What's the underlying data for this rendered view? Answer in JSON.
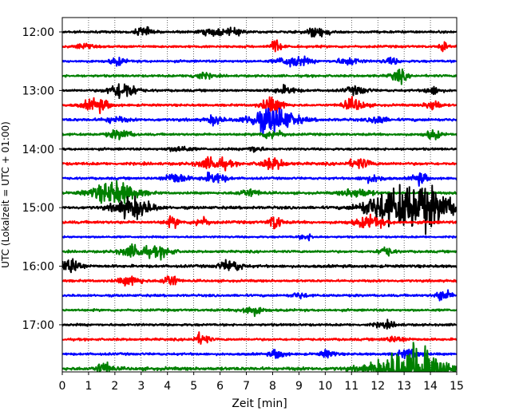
{
  "chart_data": {
    "type": "line",
    "subtype": "helicorder",
    "xlabel": "Zeit  [min]",
    "ylabel": "UTC (Lokalzeit = UTC + 01:00)",
    "xlim": [
      0,
      15
    ],
    "x_ticks": [
      "0",
      "1",
      "2",
      "3",
      "4",
      "5",
      "6",
      "7",
      "8",
      "9",
      "10",
      "11",
      "12",
      "13",
      "14",
      "15"
    ],
    "y_tick_labels": [
      "12:00",
      "13:00",
      "14:00",
      "15:00",
      "16:00",
      "17:00"
    ],
    "grid": "vertical dotted at each minute",
    "trace_minutes": 15,
    "line_colors": [
      "#000000",
      "#ff0000",
      "#0000ff",
      "#008000"
    ],
    "traces": [
      {
        "start": "12:00",
        "color": "black",
        "noise": 0.25,
        "events": [
          {
            "t": 3.1,
            "amp": 0.55,
            "dur": 0.2
          },
          {
            "t": 5.7,
            "amp": 0.35,
            "dur": 0.3
          },
          {
            "t": 9.7,
            "amp": 0.55,
            "dur": 0.3
          },
          {
            "t": 6.5,
            "amp": 0.3,
            "dur": 0.3
          }
        ]
      },
      {
        "start": "12:15",
        "color": "red",
        "noise": 0.25,
        "events": [
          {
            "t": 8.1,
            "amp": 0.7,
            "dur": 0.15
          },
          {
            "t": 14.5,
            "amp": 0.5,
            "dur": 0.1
          },
          {
            "t": 0.8,
            "amp": 0.3,
            "dur": 0.2
          }
        ]
      },
      {
        "start": "12:30",
        "color": "blue",
        "noise": 0.25,
        "events": [
          {
            "t": 8.8,
            "amp": 0.6,
            "dur": 0.4
          },
          {
            "t": 2.1,
            "amp": 0.4,
            "dur": 0.2
          },
          {
            "t": 10.9,
            "amp": 0.4,
            "dur": 0.3
          },
          {
            "t": 12.5,
            "amp": 0.35,
            "dur": 0.2
          }
        ]
      },
      {
        "start": "12:45",
        "color": "green",
        "noise": 0.25,
        "events": [
          {
            "t": 12.8,
            "amp": 0.7,
            "dur": 0.2
          },
          {
            "t": 5.3,
            "amp": 0.3,
            "dur": 0.3
          }
        ]
      },
      {
        "start": "13:00",
        "color": "black",
        "noise": 0.25,
        "events": [
          {
            "t": 2.3,
            "amp": 1.0,
            "dur": 0.35
          },
          {
            "t": 8.5,
            "amp": 0.4,
            "dur": 0.3
          },
          {
            "t": 11.2,
            "amp": 0.4,
            "dur": 0.3
          },
          {
            "t": 14.1,
            "amp": 0.45,
            "dur": 0.2
          }
        ]
      },
      {
        "start": "13:15",
        "color": "red",
        "noise": 0.25,
        "events": [
          {
            "t": 1.3,
            "amp": 0.7,
            "dur": 0.35
          },
          {
            "t": 8.0,
            "amp": 0.8,
            "dur": 0.3
          },
          {
            "t": 11.1,
            "amp": 0.65,
            "dur": 0.3
          },
          {
            "t": 14.1,
            "amp": 0.6,
            "dur": 0.2
          }
        ]
      },
      {
        "start": "13:30",
        "color": "blue",
        "noise": 0.3,
        "events": [
          {
            "t": 8.0,
            "amp": 1.4,
            "dur": 0.6
          },
          {
            "t": 5.8,
            "amp": 0.5,
            "dur": 0.2
          },
          {
            "t": 12.0,
            "amp": 0.5,
            "dur": 0.2
          },
          {
            "t": 2.0,
            "amp": 0.3,
            "dur": 0.3
          }
        ]
      },
      {
        "start": "13:45",
        "color": "green",
        "noise": 0.25,
        "events": [
          {
            "t": 2.2,
            "amp": 0.5,
            "dur": 0.3
          },
          {
            "t": 8.0,
            "amp": 0.45,
            "dur": 0.3
          },
          {
            "t": 14.1,
            "amp": 0.5,
            "dur": 0.2
          }
        ]
      },
      {
        "start": "14:00",
        "color": "black",
        "noise": 0.25,
        "events": [
          {
            "t": 7.3,
            "amp": 0.35,
            "dur": 0.2
          },
          {
            "t": 4.5,
            "amp": 0.3,
            "dur": 0.3
          }
        ]
      },
      {
        "start": "14:15",
        "color": "red",
        "noise": 0.3,
        "events": [
          {
            "t": 5.8,
            "amp": 0.7,
            "dur": 0.4
          },
          {
            "t": 8.0,
            "amp": 0.6,
            "dur": 0.3
          },
          {
            "t": 11.3,
            "amp": 0.5,
            "dur": 0.3
          }
        ]
      },
      {
        "start": "14:30",
        "color": "blue",
        "noise": 0.25,
        "events": [
          {
            "t": 4.3,
            "amp": 0.6,
            "dur": 0.3
          },
          {
            "t": 5.8,
            "amp": 0.6,
            "dur": 0.3
          },
          {
            "t": 13.6,
            "amp": 0.6,
            "dur": 0.2
          },
          {
            "t": 11.8,
            "amp": 0.35,
            "dur": 0.3
          }
        ]
      },
      {
        "start": "14:45",
        "color": "green",
        "noise": 0.25,
        "events": [
          {
            "t": 2.0,
            "amp": 1.3,
            "dur": 0.6
          },
          {
            "t": 7.1,
            "amp": 0.4,
            "dur": 0.3
          },
          {
            "t": 11.2,
            "amp": 0.5,
            "dur": 0.4
          }
        ]
      },
      {
        "start": "15:00",
        "color": "black",
        "noise": 0.3,
        "events": [
          {
            "t": 2.7,
            "amp": 1.1,
            "dur": 0.5
          },
          {
            "t": 13.5,
            "amp": 2.6,
            "dur": 0.9
          },
          {
            "t": 12.0,
            "amp": 0.8,
            "dur": 0.5
          }
        ]
      },
      {
        "start": "15:15",
        "color": "red",
        "noise": 0.3,
        "events": [
          {
            "t": 8.1,
            "amp": 0.9,
            "dur": 0.15
          },
          {
            "t": 11.7,
            "amp": 0.6,
            "dur": 0.4
          },
          {
            "t": 5.3,
            "amp": 0.5,
            "dur": 0.2
          },
          {
            "t": 4.2,
            "amp": 0.5,
            "dur": 0.2
          }
        ]
      },
      {
        "start": "15:30",
        "color": "blue",
        "noise": 0.2,
        "events": [
          {
            "t": 9.3,
            "amp": 0.3,
            "dur": 0.2
          }
        ]
      },
      {
        "start": "15:45",
        "color": "green",
        "noise": 0.25,
        "events": [
          {
            "t": 2.8,
            "amp": 0.7,
            "dur": 0.4
          },
          {
            "t": 3.8,
            "amp": 0.5,
            "dur": 0.3
          },
          {
            "t": 12.3,
            "amp": 0.5,
            "dur": 0.2
          }
        ]
      },
      {
        "start": "16:00",
        "color": "black",
        "noise": 0.3,
        "events": [
          {
            "t": 0.3,
            "amp": 0.8,
            "dur": 0.3
          },
          {
            "t": 6.4,
            "amp": 0.6,
            "dur": 0.3
          }
        ]
      },
      {
        "start": "16:15",
        "color": "red",
        "noise": 0.25,
        "events": [
          {
            "t": 2.6,
            "amp": 0.5,
            "dur": 0.3
          },
          {
            "t": 4.1,
            "amp": 0.7,
            "dur": 0.2
          }
        ]
      },
      {
        "start": "16:30",
        "color": "blue",
        "noise": 0.25,
        "events": [
          {
            "t": 14.5,
            "amp": 0.6,
            "dur": 0.2
          },
          {
            "t": 9.0,
            "amp": 0.3,
            "dur": 0.2
          }
        ]
      },
      {
        "start": "16:45",
        "color": "green",
        "noise": 0.25,
        "events": [
          {
            "t": 7.2,
            "amp": 0.5,
            "dur": 0.3
          }
        ]
      },
      {
        "start": "17:00",
        "color": "black",
        "noise": 0.25,
        "events": [
          {
            "t": 12.3,
            "amp": 0.3,
            "dur": 0.3
          }
        ]
      },
      {
        "start": "17:15",
        "color": "red",
        "noise": 0.25,
        "events": [
          {
            "t": 5.3,
            "amp": 0.6,
            "dur": 0.2
          },
          {
            "t": 12.7,
            "amp": 0.3,
            "dur": 0.3
          }
        ]
      },
      {
        "start": "17:30",
        "color": "blue",
        "noise": 0.25,
        "events": [
          {
            "t": 8.2,
            "amp": 0.5,
            "dur": 0.2
          },
          {
            "t": 10.1,
            "amp": 0.4,
            "dur": 0.2
          },
          {
            "t": 13.2,
            "amp": 0.5,
            "dur": 0.3
          }
        ]
      },
      {
        "start": "17:45",
        "color": "green",
        "noise": 0.35,
        "events": [
          {
            "t": 1.6,
            "amp": 0.7,
            "dur": 0.2
          },
          {
            "t": 13.2,
            "amp": 2.0,
            "dur": 0.9
          },
          {
            "t": 13.6,
            "amp": 2.6,
            "dur": 0.2
          }
        ]
      }
    ]
  }
}
